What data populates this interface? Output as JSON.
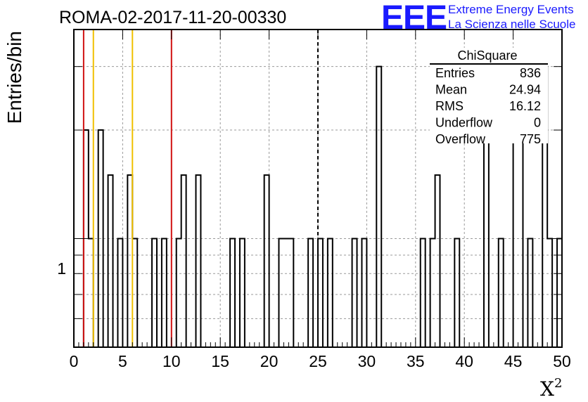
{
  "chart_data": {
    "type": "bar",
    "title": "ROMA-02-2017-11-20-00330",
    "xlabel": "X",
    "xlabel_sup": "2",
    "ylabel": "Entries/bin",
    "xlim": [
      0,
      50
    ],
    "ylog": true,
    "ylim": [
      0.5,
      3.8
    ],
    "ytick_label": "1",
    "xticks": [
      0,
      5,
      10,
      15,
      20,
      25,
      30,
      35,
      40,
      45,
      50
    ],
    "grid": true,
    "bin_width": 0.5,
    "bins": [
      {
        "x": 1.0,
        "value": 2
      },
      {
        "x": 1.5,
        "value": 1
      },
      {
        "x": 2.5,
        "value": 2
      },
      {
        "x": 3.5,
        "value": 1.5
      },
      {
        "x": 4.5,
        "value": 1
      },
      {
        "x": 5.5,
        "value": 1.5
      },
      {
        "x": 6.0,
        "value": 1
      },
      {
        "x": 8.0,
        "value": 1
      },
      {
        "x": 9.0,
        "value": 1
      },
      {
        "x": 10.5,
        "value": 1
      },
      {
        "x": 11.0,
        "value": 1.5
      },
      {
        "x": 12.5,
        "value": 1.5
      },
      {
        "x": 16.0,
        "value": 1
      },
      {
        "x": 17.0,
        "value": 1
      },
      {
        "x": 19.5,
        "value": 1.5
      },
      {
        "x": 21.0,
        "value": 1
      },
      {
        "x": 21.5,
        "value": 1
      },
      {
        "x": 22.0,
        "value": 1
      },
      {
        "x": 24.0,
        "value": 1
      },
      {
        "x": 25.0,
        "value": 1
      },
      {
        "x": 26.0,
        "value": 1
      },
      {
        "x": 28.5,
        "value": 1
      },
      {
        "x": 29.5,
        "value": 1
      },
      {
        "x": 31.0,
        "value": 3
      },
      {
        "x": 35.5,
        "value": 1
      },
      {
        "x": 36.5,
        "value": 1
      },
      {
        "x": 37.0,
        "value": 1.5
      },
      {
        "x": 39.0,
        "value": 1
      },
      {
        "x": 42.0,
        "value": 2
      },
      {
        "x": 43.5,
        "value": 1
      },
      {
        "x": 45.0,
        "value": 2
      },
      {
        "x": 45.5,
        "value": 2
      },
      {
        "x": 46.5,
        "value": 1
      },
      {
        "x": 48.0,
        "value": 3
      },
      {
        "x": 48.5,
        "value": 1
      },
      {
        "x": 49.5,
        "value": 1
      }
    ],
    "vertical_lines": [
      {
        "x": 1.0,
        "color": "#d01010",
        "style": "solid"
      },
      {
        "x": 2.0,
        "color": "#f0c000",
        "style": "solid"
      },
      {
        "x": 6.0,
        "color": "#f0c000",
        "style": "solid"
      },
      {
        "x": 10.0,
        "color": "#d01010",
        "style": "solid"
      },
      {
        "x": 25.0,
        "color": "#000000",
        "style": "dashed"
      }
    ]
  },
  "stats": {
    "name": "ChiSquare",
    "rows": [
      {
        "label": "Entries",
        "value": "836"
      },
      {
        "label": "Mean",
        "value": "24.94"
      },
      {
        "label": "RMS",
        "value": "16.12"
      },
      {
        "label": "Underflow",
        "value": "0"
      },
      {
        "label": "Overflow",
        "value": "775"
      }
    ]
  },
  "logo": {
    "mark": "EEE",
    "line1": "Extreme Energy Events",
    "line2": "La Scienza nelle Scuole",
    "color": "#1a1aff"
  }
}
